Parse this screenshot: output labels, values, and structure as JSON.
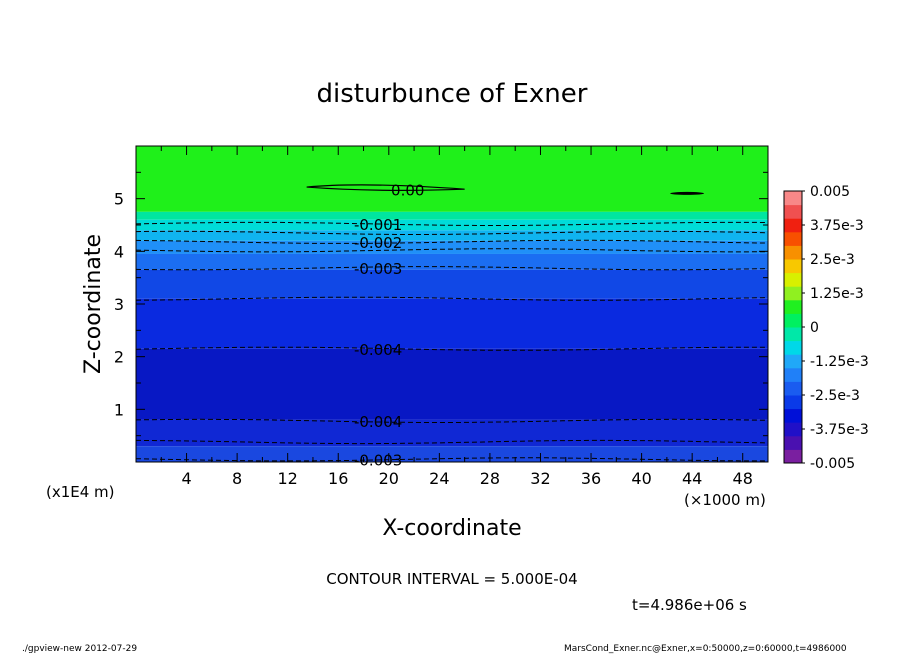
{
  "chart_data": {
    "type": "heatmap",
    "title": "disturbunce of Exner",
    "xlabel": "X-coordinate",
    "ylabel": "Z-coordinate",
    "x_unit": "(×1000 m)",
    "y_unit": "(x1E4 m)",
    "x_ticks": [
      "4",
      "8",
      "12",
      "16",
      "20",
      "24",
      "28",
      "32",
      "36",
      "40",
      "44",
      "48"
    ],
    "y_ticks": [
      "1",
      "2",
      "3",
      "4",
      "5"
    ],
    "xlim": [
      0,
      50
    ],
    "ylim": [
      0,
      6
    ],
    "contour_interval_text": "CONTOUR INTERVAL = 5.000E-04",
    "time_text": "t=4.986e+06 s",
    "footer_left": "./gpview-new   2012-07-29",
    "footer_right": "MarsCond_Exner.nc@Exner,x=0:50000,z=0:60000,t=4986000",
    "colorbar": {
      "labels": [
        "0.005",
        "3.75e-3",
        "2.5e-3",
        "1.25e-3",
        "0",
        "-1.25e-3",
        "-2.5e-3",
        "-3.75e-3",
        "-0.005"
      ],
      "colors": [
        "#7a1fa0",
        "#4a10b0",
        "#2010c8",
        "#0010d8",
        "#0a3ae8",
        "#1a5cf0",
        "#2080f8",
        "#20a8f8",
        "#00d8e8",
        "#00e8a8",
        "#00f060",
        "#20f020",
        "#90f020",
        "#d8f000",
        "#f8c800",
        "#f89000",
        "#f85000",
        "#f02010",
        "#f05050",
        "#f88888"
      ]
    },
    "bands": [
      {
        "z": [
          4.75,
          6.0
        ],
        "color": "#1ff01a"
      },
      {
        "z": [
          4.6,
          4.75
        ],
        "color": "#00e6a0"
      },
      {
        "z": [
          4.4,
          4.6
        ],
        "color": "#00dcd8"
      },
      {
        "z": [
          4.2,
          4.4
        ],
        "color": "#10b4f0"
      },
      {
        "z": [
          3.95,
          4.2
        ],
        "color": "#2090f8"
      },
      {
        "z": [
          3.65,
          3.95
        ],
        "color": "#1b6ef2"
      },
      {
        "z": [
          3.1,
          3.65
        ],
        "color": "#1148e6"
      },
      {
        "z": [
          2.15,
          3.1
        ],
        "color": "#0a2ae0"
      },
      {
        "z": [
          0.8,
          2.15
        ],
        "color": "#0818c4"
      },
      {
        "z": [
          0.3,
          0.8
        ],
        "color": "#1028d4"
      },
      {
        "z": [
          0.0,
          0.3
        ],
        "color": "#1a48e0"
      }
    ],
    "contour_levels": [
      {
        "z": 4.52,
        "label": "-0.001",
        "label_x": 19
      },
      {
        "z": 4.35,
        "label": "",
        "label_x": null
      },
      {
        "z": 4.18,
        "label": "-0.002",
        "label_x": 19
      },
      {
        "z": 4.02,
        "label": "",
        "label_x": null
      },
      {
        "z": 3.68,
        "label": "-0.003",
        "label_x": 19
      },
      {
        "z": 3.1,
        "label": "",
        "label_x": null
      },
      {
        "z": 2.15,
        "label": "-0.004",
        "label_x": 19
      },
      {
        "z": 0.78,
        "label": "-0.004",
        "label_x": 19
      },
      {
        "z": 0.38,
        "label": "",
        "label_x": null
      },
      {
        "z": 0.05,
        "label": "-0.003",
        "label_x": 19
      }
    ],
    "zero_contour_label": "0.00"
  }
}
